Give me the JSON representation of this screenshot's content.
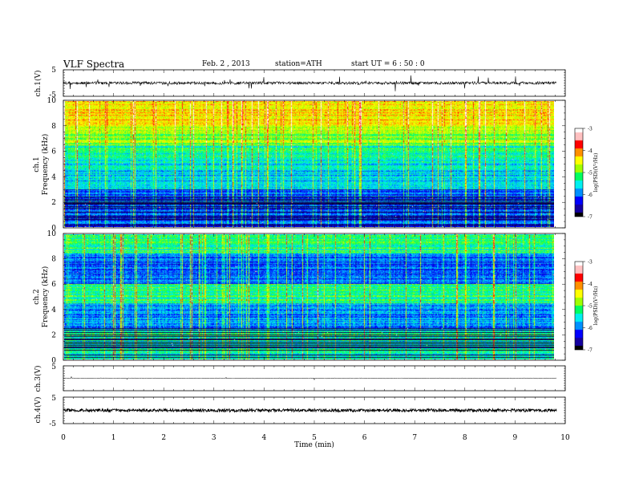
{
  "header": {
    "title": "VLF  Spectra",
    "date": "Feb. 2  , 2013",
    "station": "station=ATH",
    "start": "start  UT  =   6  : 50 : 0"
  },
  "chart_data": [
    {
      "type": "line",
      "panel": "ch1-waveform",
      "ylabel": "ch.1(V)",
      "ylim": [
        -5,
        5
      ],
      "yticks": [
        "5",
        "-5"
      ],
      "baseline_v": 0.0,
      "xlim": [
        0,
        10
      ],
      "data_end_min": 9.83
    },
    {
      "type": "heatmap",
      "panel": "ch1-spectrogram",
      "ylabel_channel": "ch.1",
      "ylabel": "Frequency  (kHz)",
      "ylim": [
        0,
        10
      ],
      "yticks": [
        "0",
        "2",
        "4",
        "6",
        "8",
        "10"
      ],
      "colorbar": {
        "label": "log(PSD)(V²/Hz)",
        "range": [
          -7,
          -3
        ],
        "ticks": [
          "-3",
          "-4",
          "-5",
          "-6",
          "-7"
        ]
      }
    },
    {
      "type": "heatmap",
      "panel": "ch2-spectrogram",
      "ylabel_channel": "ch.2",
      "ylabel": "Frequency  (kHz)",
      "ylim": [
        0,
        10
      ],
      "yticks": [
        "0",
        "2",
        "4",
        "6",
        "8",
        "10"
      ],
      "colorbar": {
        "label": "log(PSD)(V²/Hz)",
        "range": [
          -7,
          -3
        ],
        "ticks": [
          "-3",
          "-4",
          "-5",
          "-6",
          "-7"
        ]
      }
    },
    {
      "type": "line",
      "panel": "ch3-waveform",
      "ylabel": "ch.3(V)",
      "ylim": [
        -5,
        5
      ],
      "yticks": [
        "5"
      ],
      "baseline_v": 0.0
    },
    {
      "type": "line",
      "panel": "ch4-waveform",
      "ylabel": "ch.4(V)",
      "ylim": [
        -5,
        5
      ],
      "yticks": [
        "5",
        "-5"
      ],
      "baseline_v": 0.0
    }
  ],
  "xaxis": {
    "label": "Time  (min)",
    "ticks": [
      "0",
      "1",
      "2",
      "3",
      "4",
      "5",
      "6",
      "7",
      "8",
      "9",
      "10"
    ],
    "range": [
      0,
      10
    ]
  },
  "colors": {
    "colormap": [
      "#000000",
      "#1400a0",
      "#0000ff",
      "#0090ff",
      "#00f0f0",
      "#00ff60",
      "#a0ff00",
      "#ffff00",
      "#ff9000",
      "#ff0000",
      "#ffc0c0",
      "#ffffff"
    ]
  }
}
